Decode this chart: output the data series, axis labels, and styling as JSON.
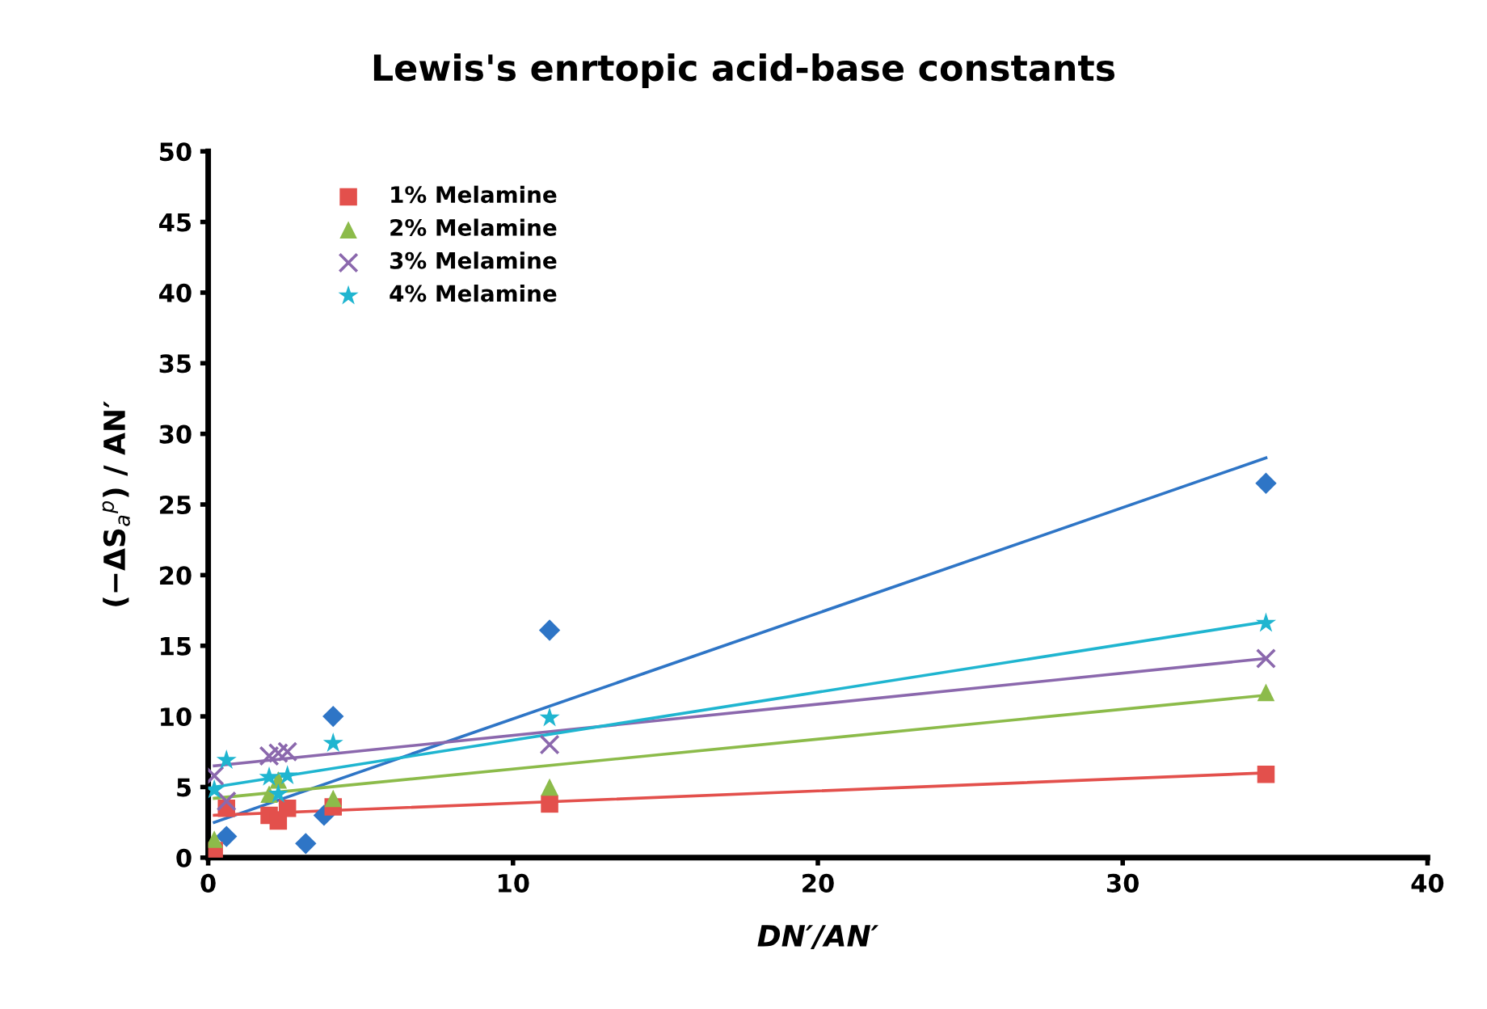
{
  "chart_data": {
    "type": "scatter",
    "title": "Lewis's enrtopic acid-base constants",
    "xlabel": "DN′/AN′",
    "ylabel": "(−ΔS$_{a}$$^{p}$) / AN′",
    "xlim": [
      0,
      40
    ],
    "xticks": [
      0,
      10,
      20,
      30,
      40
    ],
    "ylim": [
      0,
      50
    ],
    "yticks": [
      0,
      5,
      10,
      15,
      20,
      25,
      30,
      35,
      40,
      45,
      50
    ],
    "grid": false,
    "legend": "top left",
    "series": [
      {
        "color": "#2e75c6",
        "marker": "diamond",
        "x": [
          0.6,
          2.0,
          2.6,
          3.2,
          3.8,
          4.1,
          11.2,
          34.7
        ],
        "values": [
          1.5,
          null,
          null,
          1.0,
          3.0,
          10.0,
          16.1,
          26.5
        ]
      },
      {
        "name": "1% Melamine",
        "color": "#e3504c",
        "marker": "square",
        "x": [
          0.2,
          0.6,
          2.0,
          2.3,
          2.6,
          4.1,
          11.2,
          34.7
        ],
        "values": [
          0.5,
          3.5,
          3.0,
          2.6,
          3.5,
          3.6,
          3.8,
          5.9
        ]
      },
      {
        "name": "2% Melamine",
        "color": "#8cbb4a",
        "marker": "triangle",
        "x": [
          0.2,
          0.6,
          2.0,
          2.3,
          2.6,
          4.1,
          11.2,
          34.7
        ],
        "values": [
          1.3,
          null,
          4.5,
          5.5,
          null,
          4.2,
          5.0,
          11.7
        ]
      },
      {
        "name": "3% Melamine",
        "color": "#8b68ad",
        "marker": "cross",
        "x": [
          0.2,
          0.6,
          2.0,
          2.3,
          2.6,
          11.2,
          34.7
        ],
        "values": [
          5.8,
          4.0,
          7.2,
          7.4,
          7.5,
          8.0,
          14.1
        ]
      },
      {
        "name": "4% Melamine",
        "color": "#1fb5d0",
        "marker": "star",
        "x": [
          0.2,
          0.6,
          2.0,
          2.3,
          2.6,
          4.1,
          11.2,
          34.7
        ],
        "values": [
          4.8,
          6.9,
          5.7,
          4.5,
          5.8,
          8.1,
          9.9,
          16.6
        ]
      },
      {
        "type": "line",
        "color": "#2e75c6",
        "x": [
          0.2,
          34.7
        ],
        "values": [
          2.5,
          28.3
        ]
      },
      {
        "type": "line",
        "color": "#e3504c",
        "x": [
          0.2,
          34.7
        ],
        "values": [
          3.0,
          6.0
        ]
      },
      {
        "type": "line",
        "color": "#8cbb4a",
        "x": [
          0.2,
          34.7
        ],
        "values": [
          4.2,
          11.5
        ]
      },
      {
        "type": "line",
        "color": "#8b68ad",
        "x": [
          0.2,
          34.7
        ],
        "values": [
          6.5,
          14.1
        ]
      },
      {
        "type": "line",
        "color": "#1fb5d0",
        "x": [
          0.2,
          34.7
        ],
        "values": [
          5.0,
          16.7
        ]
      }
    ]
  }
}
